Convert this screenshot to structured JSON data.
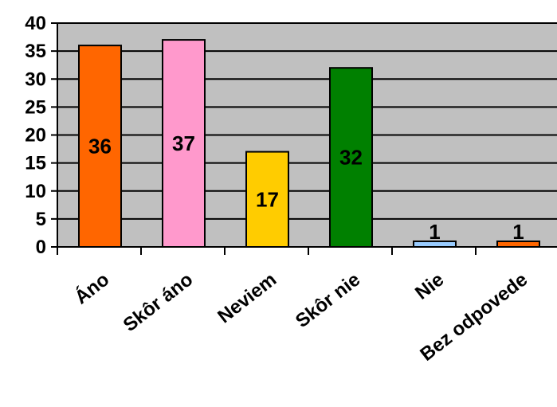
{
  "chart_data": {
    "type": "bar",
    "categories": [
      "Áno",
      "Skôr áno",
      "Neviem",
      "Skôr nie",
      "Nie",
      "Bez odpovede"
    ],
    "values": [
      36,
      37,
      17,
      32,
      1,
      1
    ],
    "data_labels": [
      "36",
      "37",
      "17",
      "32",
      "1",
      "1"
    ],
    "colors": [
      "#ff6600",
      "#ff99cc",
      "#ffcc00",
      "#008000",
      "#99ccff",
      "#ff6600"
    ],
    "ylim": [
      0,
      40
    ],
    "y_ticks": [
      "0",
      "5",
      "10",
      "15",
      "20",
      "25",
      "30",
      "35",
      "40"
    ],
    "plot_background": "#c0c0c0",
    "grid": true,
    "legend": false,
    "title": "",
    "xlabel": "",
    "ylabel": ""
  }
}
